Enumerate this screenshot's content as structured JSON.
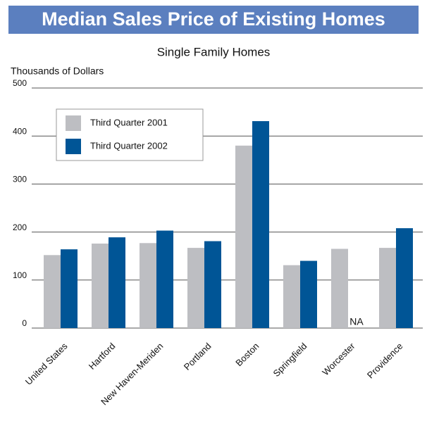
{
  "chart_data": {
    "type": "bar",
    "title": "Median Sales Price of Existing Homes",
    "subtitle": "Single Family Homes",
    "y_label": "Thousands of Dollars",
    "categories": [
      "United States",
      "Hartford",
      "New Haven-Meriden",
      "Portland",
      "Boston",
      "Springfield",
      "Worcester",
      "Providence"
    ],
    "series": [
      {
        "name": "Third Quarter 2001",
        "color": "#bdbec2",
        "values": [
          152,
          176,
          177,
          167,
          380,
          131,
          165,
          167
        ]
      },
      {
        "name": "Third Quarter 2002",
        "color": "#005596",
        "values": [
          164,
          189,
          203,
          181,
          431,
          140,
          null,
          208
        ],
        "value_labels": [
          null,
          null,
          null,
          null,
          null,
          null,
          "NA",
          null
        ]
      }
    ],
    "ylim": [
      0,
      500
    ],
    "yticks": [
      0,
      100,
      200,
      300,
      400,
      500
    ],
    "grid": true,
    "legend": "upper left"
  }
}
